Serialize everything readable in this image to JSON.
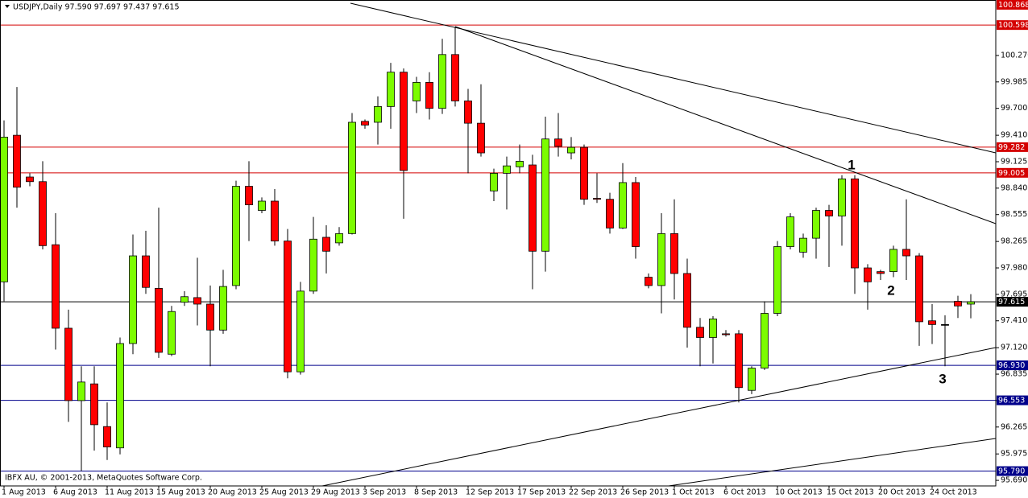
{
  "chart_data": {
    "type": "candlestick",
    "title": "USDJPY,Daily  97.590 97.697 97.437 97.615",
    "footer": "IBFX AU, © 2001-2013, MetaQuotes Software Corp.",
    "annotations": [
      "1",
      "2",
      "3"
    ],
    "up_color": "#7cfc00",
    "down_color": "#ff0000",
    "ylim": [
      95.63,
      100.868
    ],
    "yticks": [
      {
        "value": 100.27,
        "label": "100.270"
      },
      99.985,
      {
        "value": 99.7,
        "label": "99.700"
      },
      {
        "value": 99.41,
        "label": "99.410"
      },
      99.125,
      {
        "value": 98.84,
        "label": "98.840"
      },
      98.555,
      98.265,
      {
        "value": 97.98,
        "label": "97.980"
      },
      97.695,
      {
        "value": 97.41,
        "label": "97.410"
      },
      {
        "value": 97.12,
        "label": "97.120"
      },
      96.835,
      {
        "value": 96.55,
        "label": "96.550"
      },
      96.265,
      95.975,
      {
        "value": 95.69,
        "label": "95.690"
      }
    ],
    "levels": [
      {
        "value": 100.868,
        "label": "100.868",
        "color": "#d40000"
      },
      {
        "value": 100.598,
        "label": "100.598",
        "color": "#d40000"
      },
      {
        "value": 99.282,
        "label": "99.282",
        "color": "#d40000"
      },
      {
        "value": 99.005,
        "label": "99.005",
        "color": "#d40000"
      },
      {
        "value": 97.615,
        "label": "97.615",
        "color": "#000000"
      },
      {
        "value": 96.93,
        "label": "96.930",
        "color": "#00008b"
      },
      {
        "value": 96.553,
        "label": "96.553",
        "color": "#00008b"
      },
      {
        "value": 95.79,
        "label": "95.790",
        "color": "#00008b"
      }
    ],
    "categories": [
      "1 Aug 2013",
      null,
      null,
      null,
      "6 Aug 2013",
      null,
      null,
      null,
      "11 Aug 2013",
      null,
      null,
      null,
      "15 Aug 2013",
      null,
      null,
      null,
      "20 Aug 2013",
      null,
      null,
      null,
      "25 Aug 2013",
      null,
      null,
      null,
      "29 Aug 2013",
      null,
      null,
      null,
      "3 Sep 2013",
      null,
      null,
      null,
      "8 Sep 2013",
      null,
      null,
      null,
      "12 Sep 2013",
      null,
      null,
      null,
      "17 Sep 2013",
      null,
      null,
      null,
      "22 Sep 2013",
      null,
      null,
      null,
      "26 Sep 2013",
      null,
      null,
      null,
      "1 Oct 2013",
      null,
      null,
      null,
      "6 Oct 2013",
      null,
      null,
      null,
      "10 Oct 2013",
      null,
      null,
      null,
      "15 Oct 2013",
      null,
      null,
      null,
      "20 Oct 2013",
      null,
      null,
      null,
      "24 Oct 2013",
      null,
      null,
      null
    ],
    "open": [
      97.83,
      99.41,
      98.96,
      98.91,
      98.23,
      97.33,
      96.55,
      96.73,
      96.27,
      96.04,
      97.165,
      98.11,
      97.76,
      97.05,
      97.61,
      97.66,
      97.59,
      97.31,
      97.79,
      98.86,
      98.6,
      98.7,
      98.27,
      96.86,
      97.73,
      98.31,
      98.25,
      98.35,
      99.56,
      99.55,
      99.72,
      100.09,
      99.78,
      99.98,
      99.7,
      100.28,
      99.78,
      99.54,
      98.81,
      99.0,
      99.07,
      99.09,
      98.16,
      99.37,
      99.22,
      99.28,
      98.73,
      98.72,
      98.41,
      98.9,
      97.88,
      97.79,
      98.35,
      97.92,
      97.34,
      97.23,
      97.27,
      97.27,
      96.66,
      96.9,
      97.49,
      98.21,
      98.15,
      98.3,
      98.6,
      98.54,
      98.94,
      97.98,
      97.94,
      97.94,
      98.18,
      98.11,
      97.41,
      97.37,
      97.62,
      97.59
    ],
    "high": [
      99.57,
      99.93,
      99.0,
      99.13,
      98.57,
      97.53,
      96.92,
      96.92,
      96.53,
      97.23,
      98.34,
      98.38,
      98.63,
      97.57,
      97.73,
      98.09,
      97.79,
      97.96,
      98.92,
      99.13,
      98.74,
      98.83,
      98.4,
      97.83,
      98.53,
      98.44,
      98.42,
      99.65,
      99.58,
      99.83,
      100.19,
      100.13,
      100.04,
      100.09,
      100.45,
      100.58,
      99.91,
      99.96,
      99.05,
      99.18,
      99.31,
      99.2,
      99.61,
      99.65,
      99.39,
      99.31,
      99.0,
      98.79,
      99.11,
      98.96,
      97.92,
      98.57,
      98.72,
      98.08,
      97.44,
      97.46,
      97.31,
      97.31,
      96.92,
      97.62,
      98.27,
      98.57,
      98.35,
      98.63,
      98.66,
      98.98,
      98.98,
      98.02,
      97.96,
      98.22,
      98.72,
      98.14,
      97.59,
      97.47,
      97.68,
      97.697
    ],
    "low": [
      97.62,
      98.63,
      98.86,
      98.18,
      97.1,
      96.32,
      95.79,
      96.01,
      95.91,
      95.97,
      97.05,
      97.7,
      97.01,
      97.03,
      97.57,
      97.36,
      96.92,
      97.27,
      97.75,
      98.27,
      98.57,
      98.22,
      96.79,
      96.83,
      97.7,
      97.92,
      98.22,
      98.34,
      99.48,
      99.31,
      99.48,
      98.51,
      99.65,
      99.58,
      99.64,
      99.72,
      99.0,
      99.18,
      98.7,
      98.61,
      99.0,
      97.75,
      97.94,
      99.18,
      99.15,
      98.66,
      98.68,
      98.35,
      98.4,
      98.08,
      97.76,
      97.49,
      97.64,
      97.12,
      96.92,
      96.95,
      97.24,
      96.53,
      96.62,
      96.88,
      97.46,
      98.18,
      98.09,
      98.08,
      97.99,
      98.22,
      97.7,
      97.53,
      97.85,
      97.88,
      97.85,
      97.14,
      97.16,
      96.92,
      97.44,
      97.437
    ],
    "close": [
      99.39,
      98.85,
      98.91,
      98.22,
      97.33,
      96.55,
      96.75,
      96.29,
      96.05,
      97.165,
      98.11,
      97.77,
      97.07,
      97.51,
      97.67,
      97.59,
      97.31,
      97.78,
      98.86,
      98.66,
      98.7,
      98.27,
      96.86,
      97.73,
      98.29,
      98.16,
      98.35,
      99.55,
      99.52,
      99.72,
      100.09,
      99.03,
      99.98,
      99.7,
      100.28,
      99.78,
      99.54,
      99.22,
      99.0,
      99.08,
      99.13,
      98.16,
      99.37,
      99.29,
      99.28,
      98.72,
      98.72,
      98.41,
      98.9,
      98.21,
      97.79,
      98.35,
      97.92,
      97.34,
      97.23,
      97.43,
      97.26,
      96.69,
      96.9,
      97.49,
      98.21,
      98.53,
      98.3,
      98.6,
      98.54,
      98.94,
      97.98,
      97.83,
      97.92,
      98.18,
      98.11,
      97.4,
      97.37,
      97.37,
      97.57,
      97.615
    ]
  }
}
